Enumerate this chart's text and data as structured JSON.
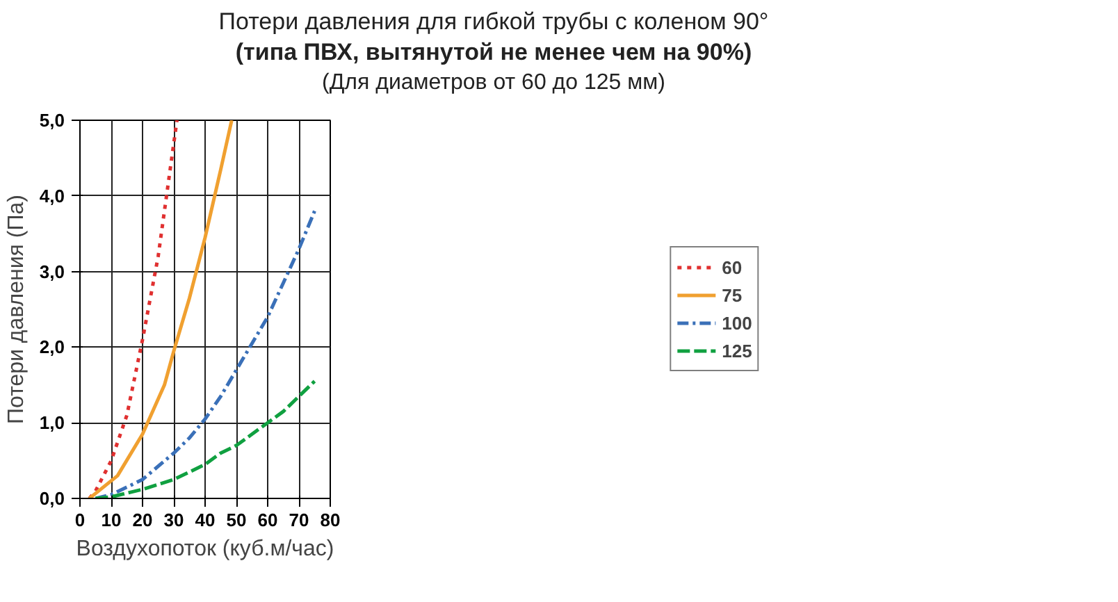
{
  "chart_data": {
    "type": "line",
    "title": "Потери давления для гибкой трубы с коленом 90°\n(типа ПВХ, вытянутой не менее чем на 90%)",
    "subtitle": "(Для диаметров от 60 до 125 мм)",
    "xlabel": "Воздухопоток (куб.м/час)",
    "ylabel": "Потери давления (Па)",
    "xlim": [
      0,
      80
    ],
    "xticks": [
      0,
      10,
      20,
      30,
      40,
      50,
      60,
      70,
      80
    ],
    "ylim": [
      0,
      5
    ],
    "yticks": [
      {
        "value": 0,
        "label": "0,0"
      },
      {
        "value": 1,
        "label": "1,0"
      },
      {
        "value": 2,
        "label": "2,0"
      },
      {
        "value": 3,
        "label": "3,0"
      },
      {
        "value": 4,
        "label": "4,0"
      },
      {
        "value": 5,
        "label": "5,0"
      }
    ],
    "grid": true,
    "legend": "right",
    "series": [
      {
        "name": "60",
        "color": "#e03030",
        "line_style": "dotted",
        "x": [
          3,
          5,
          10,
          15,
          20,
          25,
          30,
          31
        ],
        "values": [
          0,
          0.1,
          0.5,
          1.1,
          2.1,
          3.2,
          4.7,
          5.0
        ]
      },
      {
        "name": "75",
        "color": "#f0a030",
        "line_style": "solid",
        "x": [
          3,
          6,
          12,
          20,
          27,
          30,
          35,
          40,
          45,
          48.5
        ],
        "values": [
          0,
          0.1,
          0.3,
          0.85,
          1.5,
          1.95,
          2.65,
          3.45,
          4.35,
          5.0
        ]
      },
      {
        "name": "100",
        "color": "#3a70b8",
        "line_style": "dashdot",
        "x": [
          5,
          10,
          15,
          20,
          30,
          35,
          40,
          45,
          50,
          55,
          60,
          65,
          70,
          75
        ],
        "values": [
          0,
          0.05,
          0.15,
          0.25,
          0.6,
          0.8,
          1.05,
          1.35,
          1.7,
          2.05,
          2.4,
          2.85,
          3.3,
          3.8
        ]
      },
      {
        "name": "125",
        "color": "#10a040",
        "line_style": "dashed",
        "x": [
          5,
          10,
          20,
          30,
          35,
          40,
          45,
          50,
          55,
          60,
          65,
          70,
          75
        ],
        "values": [
          0,
          0.02,
          0.12,
          0.25,
          0.35,
          0.45,
          0.6,
          0.7,
          0.85,
          1.0,
          1.15,
          1.35,
          1.55
        ]
      }
    ]
  }
}
